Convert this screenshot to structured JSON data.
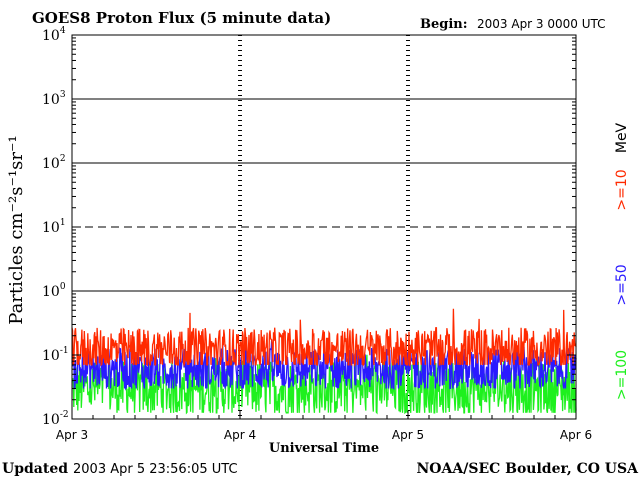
{
  "title": "GOES8 Proton Flux (5 minute data)",
  "begin_label": "Begin:",
  "begin_value": "2003 Apr 3 0000 UTC",
  "updated_label": "Updated",
  "updated_value": "2003 Apr  5 23:56:05 UTC",
  "credit": "NOAA/SEC Boulder, CO USA",
  "colors": {
    "p10": "#ff2a00",
    "p50": "#2a1aff",
    "p100": "#1ef01e",
    "axis": "#000000"
  },
  "chart_data": {
    "type": "line",
    "title": "GOES8 Proton Flux (5 minute data)",
    "xlabel": "Universal Time",
    "ylabel": "Particles cm⁻²s⁻¹sr⁻¹",
    "ylog": true,
    "ylim": [
      0.01,
      10000
    ],
    "xlim": [
      0,
      72
    ],
    "x_units": "hours since 2003 Apr 3 0000 UTC",
    "x_tick_labels": [
      "Apr 3",
      "Apr 4",
      "Apr 5",
      "Apr 6"
    ],
    "x_tick_values": [
      0,
      24,
      48,
      72
    ],
    "y_tick_values": [
      0.01,
      0.1,
      1,
      10,
      100,
      1000,
      10000
    ],
    "y_tick_labels": [
      {
        "base": "10",
        "exp": "-2"
      },
      {
        "base": "10",
        "exp": "-1"
      },
      {
        "base": "10",
        "exp": "0"
      },
      {
        "base": "10",
        "exp": "1"
      },
      {
        "base": "10",
        "exp": "2"
      },
      {
        "base": "10",
        "exp": "3"
      },
      {
        "base": "10",
        "exp": "4"
      }
    ],
    "reference_lines": [
      {
        "y": 10,
        "style": "dashed"
      },
      {
        "y": 1,
        "style": "solid"
      },
      {
        "y": 100,
        "style": "solid"
      },
      {
        "y": 1000,
        "style": "solid"
      }
    ],
    "grid": false,
    "series": [
      {
        "name": ">=10",
        "unit": "MeV",
        "color": "#ff2a00",
        "typical_range": [
          0.07,
          0.3
        ],
        "median": 0.12,
        "peak": 0.55
      },
      {
        "name": ">=50",
        "color": "#2a1aff",
        "typical_range": [
          0.03,
          0.12
        ],
        "median": 0.06
      },
      {
        "name": ">=100",
        "color": "#1ef01e",
        "typical_range": [
          0.012,
          0.08
        ],
        "median": 0.03
      }
    ],
    "legend": {
      "position": "right",
      "unit_label": "MeV",
      "entries": [
        ">=10",
        ">=50",
        ">=100"
      ]
    }
  }
}
